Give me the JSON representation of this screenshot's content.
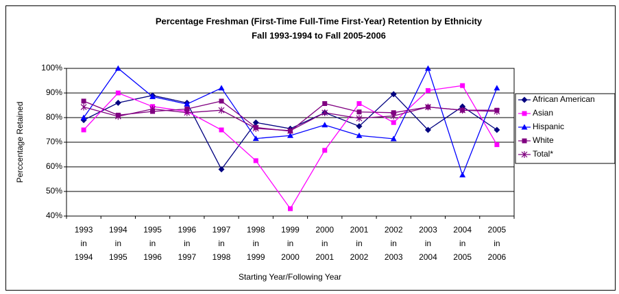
{
  "chart_data": {
    "type": "line",
    "title": "Percentage Freshman (First-Time Full-Time First-Year) Retention by Ethnicity",
    "subtitle": "Fall 1993-1994 to Fall 2005-2006",
    "x_label": "Starting Year/Following Year",
    "y_label": "Perccentage Retained",
    "categories": [
      [
        "1993",
        "in",
        "1994"
      ],
      [
        "1994",
        "in",
        "1995"
      ],
      [
        "1995",
        "in",
        "1996"
      ],
      [
        "1996",
        "in",
        "1997"
      ],
      [
        "1997",
        "in",
        "1998"
      ],
      [
        "1998",
        "in",
        "1999"
      ],
      [
        "1999",
        "in",
        "2000"
      ],
      [
        "2000",
        "in",
        "2001"
      ],
      [
        "2001",
        "in",
        "2002"
      ],
      [
        "2002",
        "in",
        "2003"
      ],
      [
        "2003",
        "in",
        "2004"
      ],
      [
        "2004",
        "in",
        "2005"
      ],
      [
        "2005",
        "in",
        "2006"
      ]
    ],
    "series": [
      {
        "name": "African American",
        "color": "#000080",
        "marker": "diamond",
        "values": [
          79,
          86,
          89,
          86,
          59,
          78,
          75.5,
          82,
          76.5,
          89.5,
          75,
          84.5,
          75
        ]
      },
      {
        "name": "Asian",
        "color": "#ff00ff",
        "marker": "square",
        "values": [
          75,
          90,
          84.5,
          82.5,
          75,
          62.5,
          43,
          66.7,
          85.7,
          78,
          91,
          93,
          69
        ]
      },
      {
        "name": "Hispanic",
        "color": "#0000ff",
        "marker": "triangle",
        "values": [
          80,
          100,
          88.5,
          85.5,
          92,
          71.5,
          72.7,
          77,
          72.7,
          71.4,
          100,
          56.7,
          92
        ]
      },
      {
        "name": "White",
        "color": "#800080",
        "marker": "square",
        "values": [
          86.7,
          81,
          82.5,
          83.5,
          86.7,
          76,
          74.5,
          85.7,
          82.3,
          82,
          84.3,
          83,
          83
        ]
      },
      {
        "name": "Total*",
        "color": "#800080",
        "marker": "star",
        "values": [
          84.3,
          80.5,
          83.5,
          82,
          83,
          75.6,
          74.7,
          82,
          79.7,
          80.7,
          84.3,
          83,
          82.5
        ]
      }
    ],
    "ylim": [
      40,
      100
    ],
    "yticks": [
      {
        "value": 40,
        "label": "40%"
      },
      {
        "value": 50,
        "label": "50%"
      },
      {
        "value": 60,
        "label": "60%"
      },
      {
        "value": 70,
        "label": "70%"
      },
      {
        "value": 80,
        "label": "80%"
      },
      {
        "value": 90,
        "label": "90%"
      },
      {
        "value": 100,
        "label": "100%"
      }
    ],
    "grid": true,
    "legend": "right"
  }
}
